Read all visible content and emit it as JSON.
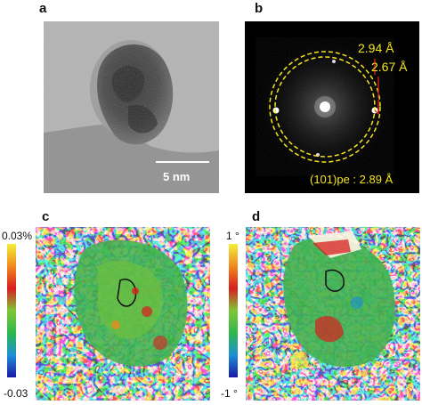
{
  "panels": {
    "a": {
      "letter": "a",
      "scale_bar_label": "5 nm"
    },
    "b": {
      "letter": "b",
      "ring_outer_label": "2.94 Å",
      "ring_inner_label": "2.67 Å",
      "plane_label": "(101)pe : 2.89 Å",
      "annotation_color": "#f5e61c",
      "marker_color": "#e0201e"
    },
    "c": {
      "letter": "c",
      "colorbar_max": "0.03%",
      "colorbar_min": "-0.03"
    },
    "d": {
      "letter": "d",
      "colorbar_max": "1 °",
      "colorbar_min": "-1 °"
    }
  },
  "colors": {
    "colormap": [
      "#1a1aa6",
      "#1d8fd6",
      "#2fb84a",
      "#7ec638",
      "#f3ee3a",
      "#f08a1e",
      "#d81e1e",
      "#fff4e6"
    ]
  }
}
